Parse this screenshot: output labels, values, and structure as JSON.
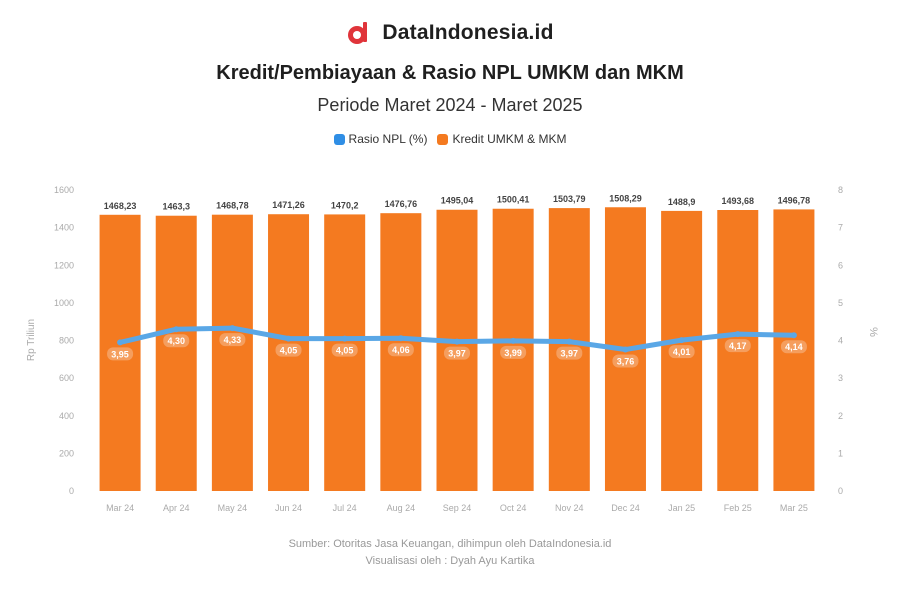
{
  "brand": {
    "name": "DataIndonesia.id",
    "logo_icon": "dataindonesia-logo-icon",
    "logo_color": "#e0343a"
  },
  "title": "Kredit/Pembiayaan & Rasio NPL UMKM dan MKM",
  "subtitle": "Periode Maret 2024 - Maret 2025",
  "source": {
    "line1": "Sumber: Otoritas Jasa Keuangan, dihimpun oleh DataIndonesia.id",
    "line2": "Visualisasi oleh : Dyah Ayu Kartika"
  },
  "chart_data": {
    "type": "bar",
    "categories": [
      "Mar 24",
      "Apr 24",
      "May 24",
      "Jun 24",
      "Jul 24",
      "Aug 24",
      "Sep 24",
      "Oct 24",
      "Nov 24",
      "Dec 24",
      "Jan 25",
      "Feb 25",
      "Mar 25"
    ],
    "series": [
      {
        "name": "Kredit UMKM & MKM",
        "type": "bar",
        "axis": "left",
        "color": "#f47a20",
        "values": [
          1468.23,
          1463.3,
          1468.78,
          1471.26,
          1470.2,
          1476.76,
          1495.04,
          1500.41,
          1503.79,
          1508.29,
          1488.9,
          1493.68,
          1496.78
        ],
        "labels": [
          "1468,23",
          "1463,3",
          "1468,78",
          "1471,26",
          "1470,2",
          "1476,76",
          "1495,04",
          "1500,41",
          "1503,79",
          "1508,29",
          "1488,9",
          "1493,68",
          "1496,78"
        ]
      },
      {
        "name": "Rasio NPL (%)",
        "type": "line",
        "axis": "right",
        "color": "#5aa7e6",
        "values": [
          3.95,
          4.3,
          4.33,
          4.05,
          4.05,
          4.06,
          3.97,
          3.99,
          3.97,
          3.76,
          4.01,
          4.17,
          4.14
        ],
        "labels": [
          "3,95",
          "4,30",
          "4,33",
          "4,05",
          "4,05",
          "4,06",
          "3,97",
          "3,99",
          "3,97",
          "3,76",
          "4,01",
          "4,17",
          "4,14"
        ]
      }
    ],
    "y_left": {
      "label": "Rp Triliun",
      "ylim": [
        0,
        1600
      ],
      "ticks": [
        "0",
        "200",
        "400",
        "600",
        "800",
        "1000",
        "1200",
        "1400",
        "1600"
      ]
    },
    "y_right": {
      "label": "%",
      "ylim": [
        0,
        8
      ],
      "ticks": [
        "0",
        "1",
        "2",
        "3",
        "4",
        "5",
        "6",
        "7",
        "8"
      ]
    },
    "grid": false,
    "legend_position": "top-center"
  }
}
